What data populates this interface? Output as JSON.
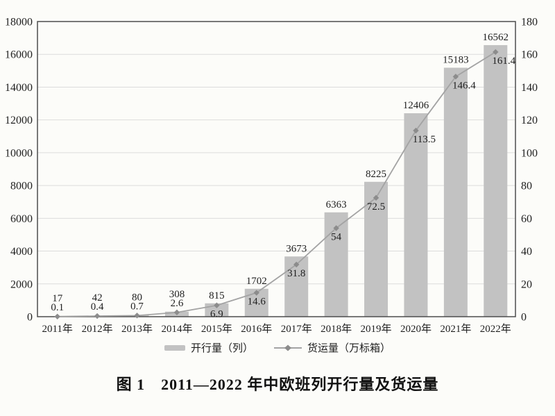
{
  "page": {
    "background": "#fcfcf9"
  },
  "figure_caption": "图 1　2011—2022 年中欧班列开行量及货运量",
  "chart_data": {
    "type": "bar+line",
    "title": "",
    "categories": [
      "2011年",
      "2012年",
      "2013年",
      "2014年",
      "2015年",
      "2016年",
      "2017年",
      "2018年",
      "2019年",
      "2020年",
      "2021年",
      "2022年"
    ],
    "series": [
      {
        "name": "开行量（列）",
        "type": "bar",
        "axis": "left",
        "values": [
          17,
          42,
          80,
          308,
          815,
          1702,
          3673,
          6363,
          8225,
          12406,
          15183,
          16562
        ],
        "labels": [
          "17",
          "42",
          "80",
          "308",
          "815",
          "1702",
          "3673",
          "6363",
          "8225",
          "12406",
          "15183",
          "16562"
        ]
      },
      {
        "name": "货运量（万标箱）",
        "type": "line",
        "axis": "right",
        "values": [
          0.1,
          0.4,
          0.7,
          2.6,
          6.9,
          14.6,
          31.8,
          54,
          72.5,
          113.5,
          146.4,
          161.4
        ],
        "labels": [
          "0.1",
          "0.4",
          "0.7",
          "2.6",
          "6.9",
          "14.6",
          "31.8",
          "54",
          "72.5",
          "113.5",
          "146.4",
          "161.4"
        ]
      }
    ],
    "left_axis": {
      "min": 0,
      "max": 18000,
      "step": 2000,
      "tick_labels": [
        "18000",
        "16000",
        "14000",
        "12000",
        "10000",
        "8000",
        "6000",
        "4000",
        "2000",
        "0"
      ]
    },
    "right_axis": {
      "min": 0,
      "max": 180,
      "step": 20,
      "tick_labels": [
        "180",
        "160",
        "140",
        "120",
        "100",
        "80",
        "60",
        "40",
        "20",
        "0"
      ]
    },
    "grid": true,
    "legend": {
      "position": "bottom",
      "items": [
        {
          "label": "开行量（列）",
          "swatch": "bar"
        },
        {
          "label": "货运量（万标箱）",
          "swatch": "line-diamond"
        }
      ]
    },
    "colors": {
      "bar": "#c2c2c2",
      "line": "#a3a3a3",
      "marker": "#8c8c8c",
      "axis": "#4d4d4d",
      "grid": "#dcdcdc",
      "text": "#1f1f1f",
      "background": "#fcfcf9"
    }
  }
}
